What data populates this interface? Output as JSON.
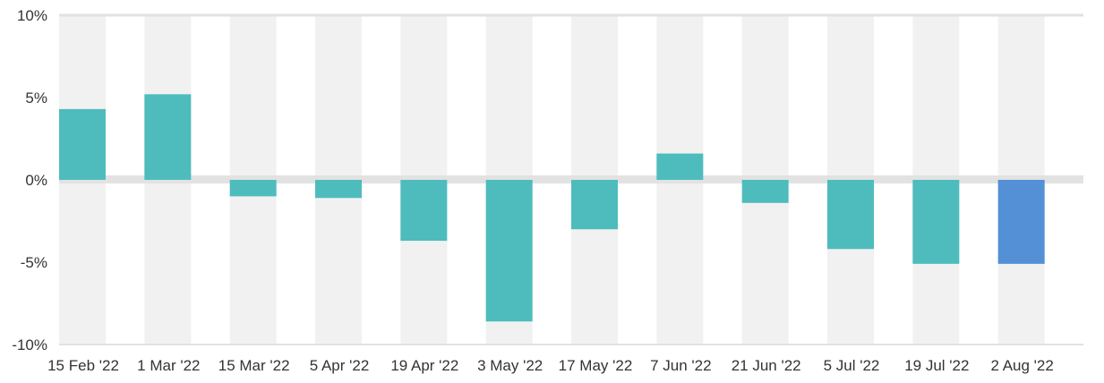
{
  "chart_data": {
    "type": "bar",
    "categories": [
      "15 Feb '22",
      "1 Mar '22",
      "15 Mar '22",
      "5 Apr '22",
      "19 Apr '22",
      "3 May '22",
      "17 May '22",
      "7 Jun '22",
      "21 Jun '22",
      "5 Jul '22",
      "19 Jul '22",
      "2 Aug '22"
    ],
    "values": [
      4.3,
      5.2,
      -1.0,
      -1.1,
      -3.7,
      -8.6,
      -3.0,
      1.6,
      -1.4,
      -4.2,
      -5.1,
      -5.1
    ],
    "ylim": [
      -10,
      10
    ],
    "yticks": [
      10,
      5,
      0,
      -5,
      -10
    ],
    "ytick_labels": [
      "10%",
      "5%",
      "0%",
      "-5%",
      "-10%"
    ],
    "grid": false,
    "colors": {
      "bar": "#4ebcbc",
      "highlight_bar": "#5390d6",
      "band": "#f1f1f1",
      "zero_line": "#e2e2e2",
      "axis_text": "#333333"
    },
    "highlight_index": 11
  }
}
